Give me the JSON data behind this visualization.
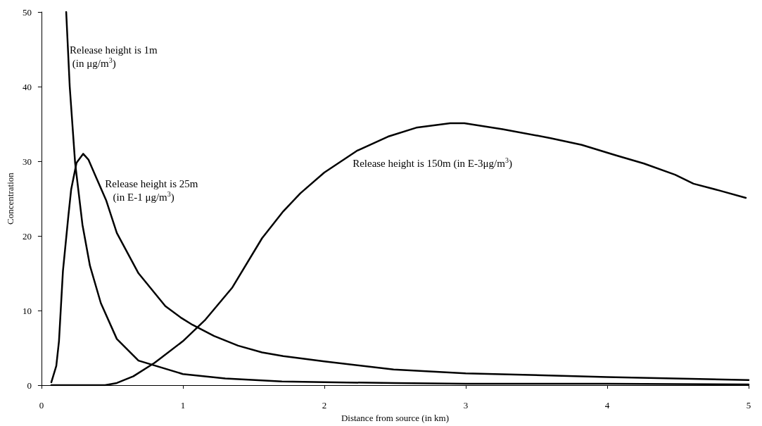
{
  "chart_data": {
    "type": "line",
    "xlabel": "Distance from source (in km)",
    "ylabel": "Concentration",
    "xlim": [
      0,
      5
    ],
    "xticks": [
      0,
      1,
      2,
      3,
      4,
      5
    ],
    "ylim": [
      0,
      50
    ],
    "yticks": [
      0,
      10,
      20,
      30,
      40,
      50
    ],
    "grid": false,
    "marker": "none",
    "line_style": "solid",
    "series": [
      {
        "color": "#000000",
        "x": [
          0.175,
          0.2,
          0.238,
          0.29,
          0.343,
          0.42,
          0.533,
          0.686,
          1,
          1.3,
          1.7,
          2,
          2.5,
          3,
          4,
          5
        ],
        "values": [
          50,
          40,
          29.8,
          21.5,
          16,
          11,
          6.2,
          3.3,
          1.5,
          0.9,
          0.5,
          0.4,
          0.3,
          0.2,
          0.2,
          0.1
        ]
      },
      {
        "color": "#000000",
        "x": [
          0.07,
          0.105,
          0.124,
          0.152,
          0.19,
          0.21,
          0.248,
          0.295,
          0.333,
          0.39,
          0.457,
          0.533,
          0.686,
          0.876,
          0.99,
          1.067,
          1.22,
          1.39,
          1.56,
          1.71,
          2,
          2.49,
          3,
          4,
          5
        ],
        "values": [
          0.4,
          2.6,
          5.9,
          15.3,
          22.6,
          26.2,
          29.8,
          31,
          30.2,
          27.7,
          24.8,
          20.4,
          15,
          10.6,
          9,
          8.1,
          6.6,
          5.3,
          4.4,
          3.9,
          3.2,
          2.1,
          1.6,
          1.1,
          0.7
        ]
      },
      {
        "color": "#000000",
        "x": [
          0.07,
          0.45,
          0.533,
          0.65,
          0.8,
          1,
          1.16,
          1.35,
          1.56,
          1.71,
          1.83,
          2,
          2.23,
          2.45,
          2.65,
          2.89,
          2.99,
          3.26,
          3.6,
          3.82,
          4.06,
          4.26,
          4.48,
          4.61,
          4.79,
          4.98
        ],
        "values": [
          0,
          0,
          0.3,
          1.2,
          3,
          5.9,
          8.8,
          13.1,
          19.7,
          23.3,
          25.7,
          28.5,
          31.4,
          33.3,
          34.5,
          35.1,
          35.1,
          34.3,
          33.1,
          32.2,
          30.8,
          29.7,
          28.2,
          27,
          26.1,
          25.1
        ]
      }
    ],
    "annotations": [
      {
        "text": "Release height is 1m\n (in μg/m$^{3}$)",
        "x": 0.2,
        "y": 44
      },
      {
        "text": "Release height is 25m\n   (in E-1 μg/m$^{3}$)",
        "x": 0.45,
        "y": 26
      },
      {
        "text": "Release height is 150m (in E-3μg/m$^{3}$)",
        "x": 2.2,
        "y": 31.2
      }
    ]
  }
}
